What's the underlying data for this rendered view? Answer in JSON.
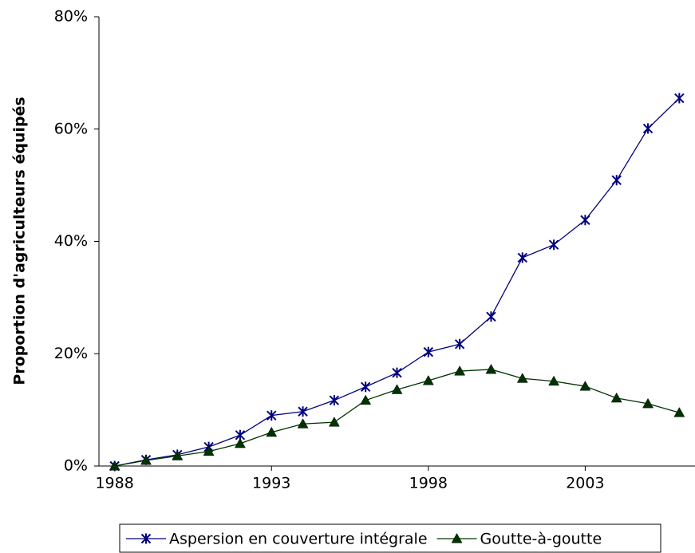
{
  "chart_data": {
    "type": "line",
    "y_label": "Proportion d'agriculteurs équipés",
    "x": [
      1988,
      1989,
      1990,
      1991,
      1992,
      1993,
      1994,
      1995,
      1996,
      1997,
      1998,
      1999,
      2000,
      2001,
      2002,
      2003,
      2004,
      2005,
      2006
    ],
    "series": [
      {
        "name": "Aspersion en couverture intégrale",
        "color": "#000080",
        "marker": "star",
        "values": [
          0,
          1.1,
          2.0,
          3.4,
          5.5,
          9.0,
          9.7,
          11.7,
          14.1,
          16.6,
          20.3,
          21.7,
          26.6,
          37.1,
          39.4,
          43.8,
          50.9,
          60.1,
          65.5
        ]
      },
      {
        "name": "Goutte-à-goutte",
        "color": "#003300",
        "marker": "triangle",
        "values": [
          0,
          1.0,
          1.8,
          2.6,
          4.0,
          6.0,
          7.5,
          7.8,
          11.7,
          13.6,
          15.2,
          16.9,
          17.2,
          15.6,
          15.1,
          14.2,
          12.1,
          11.1,
          9.5
        ]
      }
    ],
    "xlim": [
      1987.5,
      2006.5
    ],
    "xticks": [
      1988,
      1993,
      1998,
      2003
    ],
    "ylim": [
      0,
      80
    ],
    "yticks": [
      {
        "value": 0,
        "label": "0%"
      },
      {
        "value": 20,
        "label": "20%"
      },
      {
        "value": 40,
        "label": "40%"
      },
      {
        "value": 60,
        "label": "60%"
      },
      {
        "value": 80,
        "label": "80%"
      }
    ],
    "legend": "bottom"
  }
}
